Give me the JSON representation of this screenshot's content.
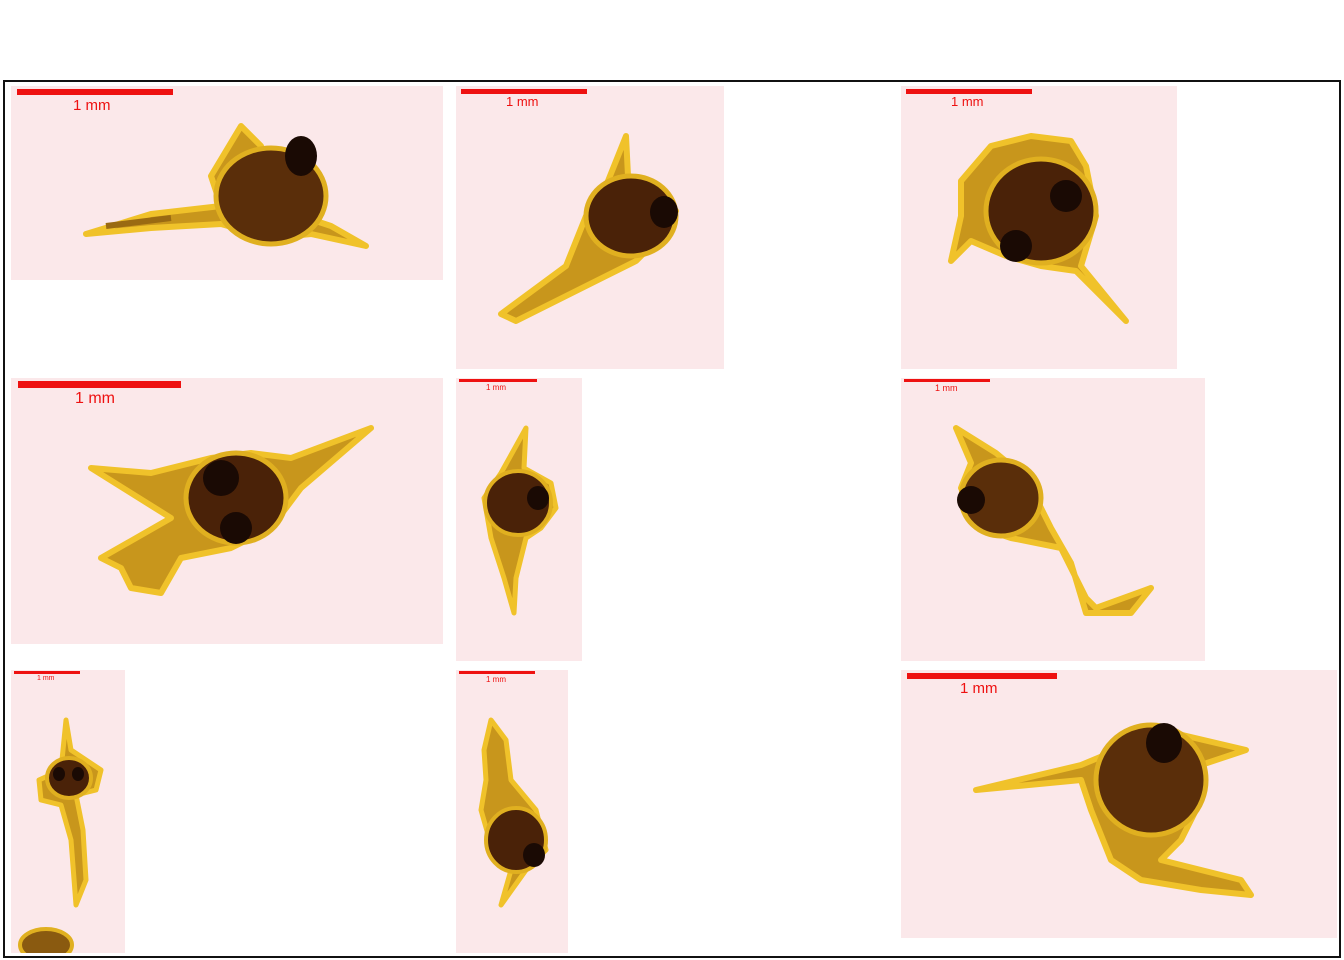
{
  "panel": {
    "border_color": "#111111",
    "tile_background": "#fbe8ea",
    "specimen_colors": [
      "#f0c22a",
      "#b07a10",
      "#3a1a0a"
    ],
    "scale_color": "#ee1111"
  },
  "tiles": [
    {
      "name": "tile-r1-c1",
      "scale_label": "1 mm"
    },
    {
      "name": "tile-r1-c2",
      "scale_label": "1 mm"
    },
    {
      "name": "tile-r1-c3",
      "scale_label": "1 mm"
    },
    {
      "name": "tile-r2-c1",
      "scale_label": "1 mm"
    },
    {
      "name": "tile-r2-c2",
      "scale_label": "1 mm"
    },
    {
      "name": "tile-r2-c3",
      "scale_label": "1 mm"
    },
    {
      "name": "tile-r3-c1",
      "scale_label": "1 mm"
    },
    {
      "name": "tile-r3-c2",
      "scale_label": "1 mm"
    },
    {
      "name": "tile-r3-c3",
      "scale_label": "1 mm"
    }
  ]
}
